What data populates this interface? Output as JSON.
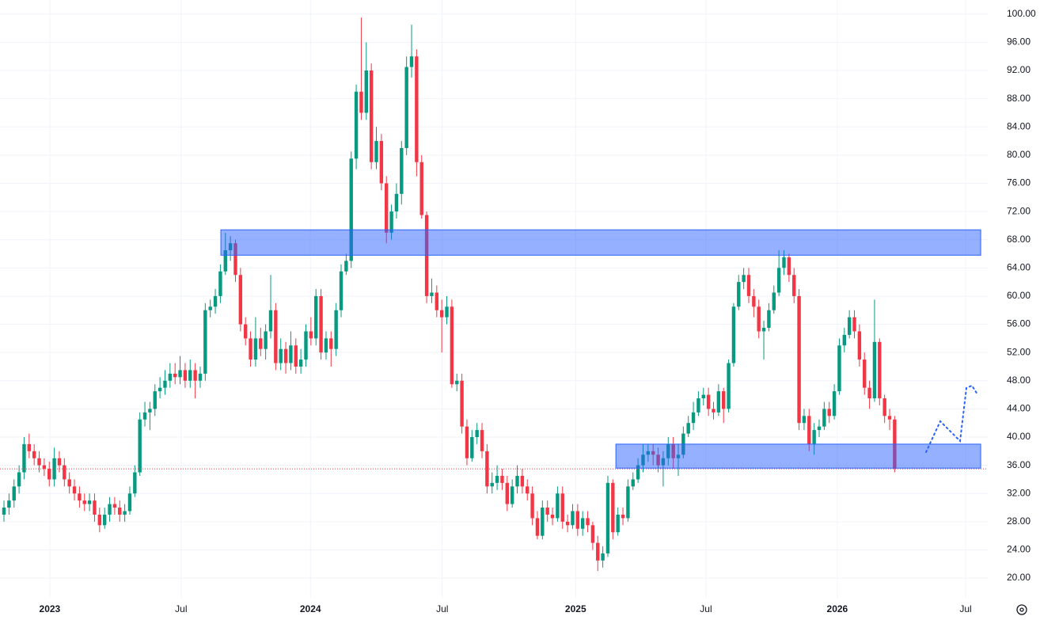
{
  "chart_data": {
    "type": "candlestick",
    "open": [
      29,
      30,
      31,
      33,
      35,
      39,
      38,
      37,
      36,
      35.5,
      34,
      37,
      36,
      34,
      33,
      32,
      31,
      30.5,
      31,
      29,
      27.5,
      29,
      30.5,
      30,
      29,
      29.5,
      32,
      35,
      42.5,
      43.5,
      44,
      46.5,
      47,
      48,
      49,
      48.5,
      49.5,
      48,
      49.5,
      48,
      49,
      58,
      58.5,
      60,
      63.5,
      66.5,
      67.5,
      63,
      56,
      54,
      51,
      54,
      52.5,
      55,
      58,
      50.5,
      52.5,
      50.5,
      53,
      50,
      51,
      55,
      54,
      60,
      52,
      54,
      52.5,
      58,
      63.5,
      65,
      79.5,
      89,
      86,
      92,
      79,
      82,
      76,
      69,
      72,
      74.5,
      81,
      92.5,
      94,
      79,
      71.5,
      60,
      60.5,
      58,
      57,
      58.5,
      47.5,
      48,
      41.5,
      37,
      40,
      41,
      38,
      33,
      33.5,
      34.5,
      33.5,
      30.5,
      33,
      34.5,
      33,
      32,
      28.5,
      26,
      30,
      29,
      28.5,
      32,
      28,
      27.5,
      29.5,
      27,
      28.5,
      27.5,
      25,
      22.5,
      23.5,
      33.5,
      26.5,
      29,
      28.5,
      33,
      34,
      36,
      37.5,
      38,
      37.5,
      36,
      37,
      39,
      37,
      37.5,
      40.5,
      42,
      43.5,
      45.5,
      46,
      44,
      43.5,
      46.5,
      44,
      50.5,
      58.5,
      62,
      63,
      60,
      58.5,
      55,
      55.5,
      58,
      60.5,
      64,
      65.5,
      63,
      60,
      42,
      43,
      39,
      41,
      41.5,
      44,
      43,
      46.5,
      53,
      54.5,
      57,
      55,
      51,
      47,
      45.5,
      53.5,
      45.5,
      43,
      42.5
    ],
    "high": [
      31,
      32,
      34,
      36,
      40,
      40.5,
      39,
      38,
      37,
      36.5,
      38.5,
      38,
      37,
      35,
      34,
      33,
      32,
      32,
      32,
      30,
      30,
      31.5,
      31.5,
      31,
      30.5,
      33,
      36,
      43.5,
      45,
      45,
      47.5,
      48.5,
      49.5,
      50.5,
      50.5,
      51.5,
      50.5,
      51,
      50.5,
      50,
      59,
      59.5,
      61,
      64.5,
      69,
      68.5,
      68,
      64,
      57,
      55,
      57,
      55.5,
      56,
      63,
      59,
      54,
      53.5,
      55,
      54,
      52.5,
      56,
      57,
      61,
      61,
      55,
      55,
      59,
      64.5,
      66,
      80.5,
      90,
      99.5,
      96,
      93,
      84,
      83,
      77,
      73,
      76,
      82,
      94,
      98.5,
      95,
      80,
      72,
      62.5,
      61.5,
      59.5,
      60,
      59.5,
      49,
      49,
      42.5,
      41,
      42,
      42,
      39,
      35,
      36,
      35.5,
      34.5,
      34,
      36,
      35.5,
      34,
      33,
      29.5,
      31,
      31,
      30,
      33,
      33,
      29,
      30.5,
      30.5,
      29.5,
      29.5,
      28,
      26,
      24.5,
      34.5,
      34,
      30,
      30,
      34,
      35,
      37,
      39,
      39,
      39,
      38.5,
      38,
      40,
      40,
      39,
      41.5,
      43,
      45,
      46.5,
      47,
      47,
      45,
      47.5,
      47,
      51,
      59,
      63,
      64,
      64,
      61,
      59.5,
      56.5,
      59,
      61.5,
      66.5,
      66.5,
      66,
      64,
      61,
      44,
      44,
      42,
      42.5,
      45,
      45,
      47.5,
      54,
      55.5,
      58,
      58,
      56,
      52,
      48,
      59.5,
      54,
      46,
      44,
      43
    ],
    "low": [
      28,
      29,
      30,
      32,
      34,
      37,
      36,
      35,
      34.5,
      33,
      33,
      35,
      33,
      32,
      31,
      30,
      29.5,
      29.5,
      28,
      26.5,
      27,
      28,
      29,
      28,
      28,
      29,
      31.5,
      34.5,
      41.5,
      41,
      43,
      45.5,
      46,
      47,
      47.5,
      47.5,
      47,
      47,
      45.5,
      47,
      48,
      57,
      57.5,
      59,
      63,
      65,
      62,
      55,
      53,
      50,
      50,
      51.5,
      51,
      54,
      49.5,
      49.5,
      49,
      49.5,
      49,
      49,
      50,
      53,
      53,
      51,
      51,
      50,
      51.5,
      57,
      63,
      64,
      78,
      85,
      85,
      78,
      78,
      75,
      67.5,
      68,
      71,
      73,
      80,
      91,
      77,
      71,
      59,
      59,
      57,
      52,
      56,
      47,
      46.5,
      40.5,
      36,
      36.5,
      39,
      37,
      32,
      32,
      32.5,
      32.5,
      29.5,
      30,
      32,
      32,
      31,
      27.5,
      25.5,
      25.5,
      28,
      27.5,
      28,
      27,
      26.5,
      27,
      26,
      26,
      26.5,
      24,
      21,
      21.5,
      23,
      25.5,
      26,
      27.5,
      28,
      32.5,
      33.5,
      35,
      36.5,
      36,
      35,
      33,
      36,
      35.5,
      34.5,
      37,
      40,
      41,
      43,
      44.5,
      43,
      42.5,
      43,
      42,
      43.5,
      50,
      58,
      61,
      59,
      57,
      54,
      51,
      55,
      57.5,
      60,
      63,
      62,
      59,
      41,
      41,
      38,
      37.5,
      40,
      41,
      42,
      42.5,
      46,
      52,
      54,
      54,
      50,
      46,
      44,
      45,
      44.5,
      42,
      41,
      35
    ],
    "close": [
      30,
      31,
      33,
      35,
      39,
      38,
      37,
      36,
      35.5,
      34,
      37,
      36,
      34,
      33,
      32,
      31,
      30.5,
      31,
      29,
      27.5,
      29,
      30.5,
      30,
      29,
      29.5,
      32,
      35,
      42.5,
      43.5,
      44,
      46.5,
      47,
      48,
      49,
      48.5,
      49.5,
      48,
      49.5,
      48,
      49,
      58,
      58.5,
      60,
      63.5,
      66.5,
      67.5,
      63,
      56,
      54,
      51,
      54,
      52.5,
      55,
      58,
      50.5,
      52.5,
      50.5,
      53,
      50,
      51,
      55,
      54,
      60,
      52,
      54,
      52.5,
      58,
      63.5,
      65,
      79.5,
      89,
      86,
      92,
      79,
      82,
      76,
      69,
      72,
      74.5,
      81,
      92.5,
      94,
      79,
      71.5,
      60,
      60.5,
      58,
      57,
      58.5,
      47.5,
      48,
      41.5,
      37,
      40,
      41,
      38,
      33,
      33.5,
      34.5,
      33.5,
      30.5,
      33,
      34.5,
      33,
      32,
      28.5,
      26,
      30,
      29,
      28.5,
      32,
      28,
      27.5,
      29.5,
      27,
      28.5,
      27.5,
      25,
      22.5,
      23.5,
      33.5,
      26.5,
      29,
      28.5,
      33,
      34,
      36,
      37.5,
      38,
      37.5,
      36,
      37,
      39,
      37,
      37.5,
      40.5,
      42,
      43.5,
      45.5,
      46,
      44,
      43.5,
      46.5,
      44,
      50.5,
      58.5,
      62,
      63,
      60,
      58.5,
      55,
      55.5,
      58,
      60.5,
      64,
      65.5,
      63,
      60,
      42,
      43,
      39,
      41,
      41.5,
      44,
      43,
      46.5,
      53,
      54.5,
      57,
      55,
      51,
      47,
      45.5,
      53.5,
      45.5,
      43,
      42.5,
      35.5
    ],
    "up_color": "#089981",
    "down_color": "#f23645",
    "xlim": [
      -0.79,
      195.5
    ],
    "xticks": [
      {
        "value": 9.1,
        "label": "2023"
      },
      {
        "value": 35.2,
        "label": "Jul"
      },
      {
        "value": 60.9,
        "label": "2024"
      },
      {
        "value": 87.1,
        "label": "Jul"
      },
      {
        "value": 113.6,
        "label": "2025"
      },
      {
        "value": 139.5,
        "label": "Jul"
      },
      {
        "value": 165.6,
        "label": "2026"
      },
      {
        "value": 191.1,
        "label": "Jul"
      }
    ],
    "ylim": [
      17.2,
      102.0
    ],
    "yticks": [
      {
        "value": 20,
        "label": "20.00"
      },
      {
        "value": 24,
        "label": "24.00"
      },
      {
        "value": 28,
        "label": "28.00"
      },
      {
        "value": 32,
        "label": "32.00"
      },
      {
        "value": 36,
        "label": "36.00"
      },
      {
        "value": 40,
        "label": "40.00"
      },
      {
        "value": 44,
        "label": "44.00"
      },
      {
        "value": 48,
        "label": "48.00"
      },
      {
        "value": 52,
        "label": "52.00"
      },
      {
        "value": 56,
        "label": "56.00"
      },
      {
        "value": 60,
        "label": "60.00"
      },
      {
        "value": 64,
        "label": "64.00"
      },
      {
        "value": 68,
        "label": "68.00"
      },
      {
        "value": 72,
        "label": "72.00"
      },
      {
        "value": 76,
        "label": "76.00"
      },
      {
        "value": 80,
        "label": "80.00"
      },
      {
        "value": 84,
        "label": "84.00"
      },
      {
        "value": 88,
        "label": "88.00"
      },
      {
        "value": 92,
        "label": "92.00"
      },
      {
        "value": 96,
        "label": "96.00"
      },
      {
        "value": 100,
        "label": "100.00"
      }
    ],
    "grid": true,
    "zones": [
      {
        "low": 65.8,
        "high": 69.4,
        "start": 43.1,
        "end": 194.1
      },
      {
        "low": 35.6,
        "high": 39.0,
        "start": 121.6,
        "end": 194.1
      }
    ]
  }
}
